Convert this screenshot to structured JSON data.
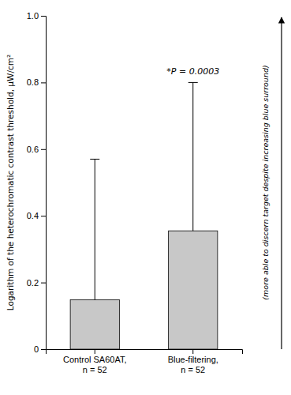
{
  "chart_data": {
    "type": "bar",
    "categories": [
      "Control SA60AT,\nn = 52",
      "Blue-filtering,\nn = 52"
    ],
    "values": [
      0.148,
      0.355
    ],
    "errors": [
      0.422,
      0.445
    ],
    "color": "#c8c8c8",
    "ylabel": "Logarithm of the heterochromatic contrast threshold, μW/cm²",
    "annotations": [
      "*P = 0.0003",
      "(more able to discern target despite increasing blue surround)"
    ],
    "ylim": [
      0,
      1.0
    ],
    "yticks": [
      0,
      0.2,
      0.4,
      0.6,
      0.8,
      {
        "value": 1.0,
        "label": "1.0"
      }
    ],
    "grid": false
  }
}
